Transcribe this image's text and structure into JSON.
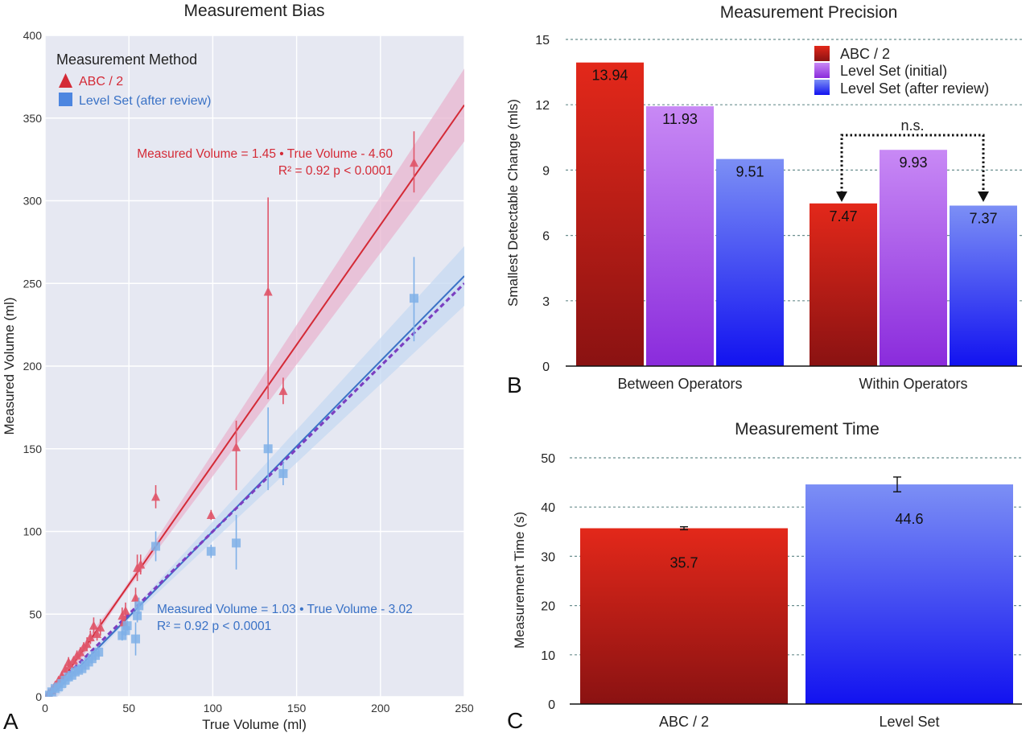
{
  "colors": {
    "abc": "#d42a36",
    "abc_point": "#e0566a",
    "abc_band": "#e8b5cf",
    "levelset": "#3a72c6",
    "levelset_point": "#7fb0e8",
    "levelset_band": "#c6daf2",
    "identity": "#7b3fc1",
    "bar_red_top": "#e3281a",
    "bar_red_bottom": "#8a1212",
    "bar_purple_top": "#c889f5",
    "bar_purple_bottom": "#8a2bdc",
    "bar_blue_top": "#7c8ff5",
    "bar_blue_bottom": "#1212f0",
    "panel_bg": "#e6e8f2"
  },
  "panels": {
    "a": "A",
    "b": "B",
    "c": "C"
  },
  "chart_data": [
    {
      "id": "bias",
      "type": "scatter",
      "title": "Measurement Bias",
      "xlabel": "True Volume (ml)",
      "ylabel": "Measured Volume (ml)",
      "xlim": [
        0,
        250
      ],
      "ylim": [
        0,
        400
      ],
      "xticks": [
        0,
        50,
        100,
        150,
        200,
        250
      ],
      "yticks": [
        0,
        50,
        100,
        150,
        200,
        250,
        300,
        350,
        400
      ],
      "grid": true,
      "legend": {
        "title": "Measurement Method",
        "placement": "top-left",
        "entries": [
          "ABC / 2",
          "Level Set (after review)"
        ]
      },
      "series": [
        {
          "name": "ABC / 2",
          "marker": "triangle",
          "fit": {
            "slope": 1.45,
            "intercept": -4.6
          },
          "equation": "Measured Volume = 1.45 • True Volume - 4.60",
          "stats_r2": "R² = 0.92  p < 0.0001",
          "band_halfwidth_at_max": 22,
          "points": [
            {
              "x": 2,
              "y": 2,
              "lo": 1,
              "hi": 3
            },
            {
              "x": 4,
              "y": 4,
              "lo": 3,
              "hi": 5
            },
            {
              "x": 6,
              "y": 7,
              "lo": 5,
              "hi": 9
            },
            {
              "x": 8,
              "y": 10,
              "lo": 8,
              "hi": 12
            },
            {
              "x": 10,
              "y": 13,
              "lo": 11,
              "hi": 15
            },
            {
              "x": 12,
              "y": 17,
              "lo": 15,
              "hi": 19
            },
            {
              "x": 14,
              "y": 21,
              "lo": 18,
              "hi": 24
            },
            {
              "x": 15,
              "y": 19,
              "lo": 17,
              "hi": 21
            },
            {
              "x": 17,
              "y": 22,
              "lo": 20,
              "hi": 24
            },
            {
              "x": 19,
              "y": 25,
              "lo": 22,
              "hi": 28
            },
            {
              "x": 21,
              "y": 27,
              "lo": 24,
              "hi": 30
            },
            {
              "x": 23,
              "y": 30,
              "lo": 27,
              "hi": 33
            },
            {
              "x": 25,
              "y": 32,
              "lo": 28,
              "hi": 36
            },
            {
              "x": 27,
              "y": 36,
              "lo": 32,
              "hi": 40
            },
            {
              "x": 29,
              "y": 43,
              "lo": 38,
              "hi": 48
            },
            {
              "x": 31,
              "y": 38,
              "lo": 34,
              "hi": 42
            },
            {
              "x": 33,
              "y": 42,
              "lo": 37,
              "hi": 47
            },
            {
              "x": 46,
              "y": 49,
              "lo": 44,
              "hi": 54
            },
            {
              "x": 47,
              "y": 45,
              "lo": 41,
              "hi": 49
            },
            {
              "x": 48,
              "y": 52,
              "lo": 47,
              "hi": 57
            },
            {
              "x": 54,
              "y": 60,
              "lo": 54,
              "hi": 66
            },
            {
              "x": 55,
              "y": 78,
              "lo": 70,
              "hi": 86
            },
            {
              "x": 57,
              "y": 80,
              "lo": 74,
              "hi": 86
            },
            {
              "x": 66,
              "y": 121,
              "lo": 114,
              "hi": 128
            },
            {
              "x": 99,
              "y": 110,
              "lo": 107,
              "hi": 113
            },
            {
              "x": 114,
              "y": 151,
              "lo": 125,
              "hi": 167
            },
            {
              "x": 133,
              "y": 245,
              "lo": 180,
              "hi": 302
            },
            {
              "x": 142,
              "y": 185,
              "lo": 177,
              "hi": 193
            },
            {
              "x": 220,
              "y": 323,
              "lo": 305,
              "hi": 342
            }
          ]
        },
        {
          "name": "Level Set (after review)",
          "marker": "square",
          "fit": {
            "slope": 1.03,
            "intercept": -3.02
          },
          "equation": "Measured Volume = 1.03 • True Volume - 3.02",
          "stats_r2": "R² = 0.92  p < 0.0001",
          "band_halfwidth_at_max": 18,
          "points": [
            {
              "x": 2,
              "y": 1,
              "lo": 0,
              "hi": 2
            },
            {
              "x": 4,
              "y": 3,
              "lo": 2,
              "hi": 4
            },
            {
              "x": 6,
              "y": 5,
              "lo": 4,
              "hi": 6
            },
            {
              "x": 8,
              "y": 6,
              "lo": 5,
              "hi": 8
            },
            {
              "x": 10,
              "y": 8,
              "lo": 6,
              "hi": 10
            },
            {
              "x": 12,
              "y": 10,
              "lo": 8,
              "hi": 12
            },
            {
              "x": 14,
              "y": 12,
              "lo": 10,
              "hi": 14
            },
            {
              "x": 16,
              "y": 13,
              "lo": 11,
              "hi": 15
            },
            {
              "x": 18,
              "y": 15,
              "lo": 13,
              "hi": 17
            },
            {
              "x": 20,
              "y": 16,
              "lo": 14,
              "hi": 18
            },
            {
              "x": 22,
              "y": 17,
              "lo": 15,
              "hi": 19
            },
            {
              "x": 24,
              "y": 19,
              "lo": 17,
              "hi": 21
            },
            {
              "x": 26,
              "y": 21,
              "lo": 19,
              "hi": 23
            },
            {
              "x": 28,
              "y": 23,
              "lo": 20,
              "hi": 26
            },
            {
              "x": 30,
              "y": 25,
              "lo": 22,
              "hi": 28
            },
            {
              "x": 32,
              "y": 27,
              "lo": 24,
              "hi": 30
            },
            {
              "x": 46,
              "y": 37,
              "lo": 34,
              "hi": 40
            },
            {
              "x": 48,
              "y": 40,
              "lo": 37,
              "hi": 43
            },
            {
              "x": 49,
              "y": 43,
              "lo": 40,
              "hi": 46
            },
            {
              "x": 54,
              "y": 35,
              "lo": 25,
              "hi": 45
            },
            {
              "x": 55,
              "y": 49,
              "lo": 45,
              "hi": 53
            },
            {
              "x": 56,
              "y": 55,
              "lo": 50,
              "hi": 60
            },
            {
              "x": 66,
              "y": 91,
              "lo": 82,
              "hi": 100
            },
            {
              "x": 99,
              "y": 88,
              "lo": 84,
              "hi": 92
            },
            {
              "x": 114,
              "y": 93,
              "lo": 77,
              "hi": 110
            },
            {
              "x": 133,
              "y": 150,
              "lo": 125,
              "hi": 175
            },
            {
              "x": 142,
              "y": 135,
              "lo": 128,
              "hi": 142
            },
            {
              "x": 220,
              "y": 241,
              "lo": 215,
              "hi": 266
            }
          ]
        }
      ],
      "identity_line": {
        "slope": 1.0,
        "intercept": 0
      }
    },
    {
      "id": "precision",
      "type": "bar",
      "title": "Measurement Precision",
      "ylabel": "Smallest Detectable Change (mls)",
      "ylim": [
        0,
        15
      ],
      "yticks": [
        0,
        3,
        6,
        9,
        12,
        15
      ],
      "grid": true,
      "legend": {
        "placement": "top-right",
        "entries": [
          "ABC / 2",
          "Level Set (initial)",
          "Level Set (after review)"
        ]
      },
      "categories": [
        "Between Operators",
        "Within Operators"
      ],
      "series": [
        {
          "name": "ABC / 2",
          "values": [
            13.94,
            7.47
          ],
          "labels": [
            "13.94",
            "7.47"
          ]
        },
        {
          "name": "Level Set (initial)",
          "values": [
            11.93,
            9.93
          ],
          "labels": [
            "11.93",
            "9.93"
          ]
        },
        {
          "name": "Level Set (after review)",
          "values": [
            9.51,
            7.37
          ],
          "labels": [
            "9.51",
            "7.37"
          ]
        }
      ],
      "annotation": {
        "text": "n.s.",
        "between": [
          "ABC / 2",
          "Level Set (after review)"
        ],
        "category": "Within Operators"
      }
    },
    {
      "id": "time",
      "type": "bar",
      "title": "Measurement Time",
      "ylabel": "Measurement Time (s)",
      "ylim": [
        0,
        50
      ],
      "yticks": [
        0,
        10,
        20,
        30,
        40,
        50
      ],
      "grid": true,
      "categories": [
        "ABC / 2",
        "Level Set"
      ],
      "values": [
        35.7,
        44.6
      ],
      "labels": [
        "35.7",
        "44.6"
      ],
      "errors": [
        0.3,
        1.5
      ]
    }
  ]
}
